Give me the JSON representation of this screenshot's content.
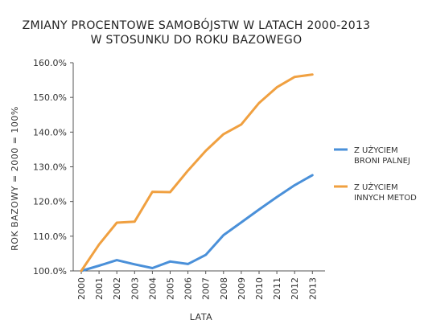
{
  "chart_data": {
    "type": "line",
    "title": [
      "ZMIANY PROCENTOWE SAMOBÓJSTW W LATACH 2000-2013",
      "W STOSUNKU DO ROKU BAZOWEGO"
    ],
    "xlabel": "LATA",
    "ylabel": "ROK BAZOWY = 2000 = 100%",
    "categories": [
      "2000",
      "2001",
      "2002",
      "2003",
      "2004",
      "2005",
      "2006",
      "2007",
      "2008",
      "2009",
      "2010",
      "2011",
      "2012",
      "2013"
    ],
    "ylim": [
      100,
      160
    ],
    "yticks": [
      100,
      110,
      120,
      130,
      140,
      150,
      160
    ],
    "ytick_labels": [
      "100.0%",
      "110.0%",
      "120.0%",
      "130.0%",
      "140.0%",
      "150.0%",
      "160.0%"
    ],
    "grid": false,
    "legend_position": "right",
    "series": [
      {
        "name": [
          "Z UŻYCIEM",
          "BRONI PALNEJ"
        ],
        "color": "#4a90d9",
        "values": [
          100.0,
          101.5,
          103.1,
          101.9,
          100.8,
          102.7,
          102.0,
          104.6,
          110.3,
          114.0,
          117.7,
          121.3,
          124.7,
          127.6
        ]
      },
      {
        "name": [
          "Z UŻYCIEM",
          "INNYCH METOD"
        ],
        "color": "#f0a040",
        "values": [
          100.0,
          107.6,
          113.9,
          114.2,
          122.8,
          122.7,
          128.9,
          134.6,
          139.4,
          142.2,
          148.4,
          152.9,
          155.9,
          156.6
        ]
      }
    ]
  }
}
